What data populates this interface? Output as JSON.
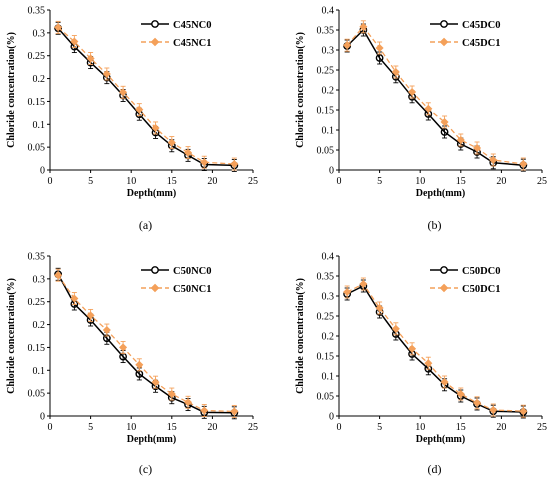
{
  "chart_data": [
    {
      "type": "line",
      "label": "(a)",
      "xlabel": "Depth(mm)",
      "ylabel": "Chloride concentration(%)",
      "xlim": [
        0,
        25
      ],
      "ylim": [
        0,
        0.35
      ],
      "xticks": [
        0,
        5,
        10,
        15,
        20,
        25
      ],
      "yticks": [
        0,
        0.05,
        0.1,
        0.15,
        0.2,
        0.25,
        0.3,
        0.35
      ],
      "ytick_labels": [
        "0",
        "0.05",
        "0.1",
        "0.15",
        "0.2",
        "0.25",
        "0.3",
        "0.35"
      ],
      "grid": false,
      "legend_position": "top-right",
      "x": [
        1,
        3,
        5,
        7,
        9,
        11,
        13,
        15,
        17,
        19,
        22.7
      ],
      "series": [
        {
          "name": "C45NC0",
          "color": "#000000",
          "dashed": false,
          "marker": "circle",
          "values": [
            0.31,
            0.27,
            0.235,
            0.202,
            0.163,
            0.122,
            0.082,
            0.053,
            0.032,
            0.012,
            0.01
          ]
        },
        {
          "name": "C45NC1",
          "color": "#f4a05a",
          "dashed": true,
          "marker": "diamond",
          "values": [
            0.312,
            0.281,
            0.244,
            0.21,
            0.17,
            0.132,
            0.092,
            0.06,
            0.038,
            0.017,
            0.013
          ]
        }
      ]
    },
    {
      "type": "line",
      "label": "(b)",
      "xlabel": "Depth(mm)",
      "ylabel": "Chloride concentration(%)",
      "xlim": [
        0,
        25
      ],
      "ylim": [
        0,
        0.4
      ],
      "xticks": [
        0,
        5,
        10,
        15,
        20,
        25
      ],
      "yticks": [
        0,
        0.05,
        0.1,
        0.15,
        0.2,
        0.25,
        0.3,
        0.35,
        0.4
      ],
      "ytick_labels": [
        "0",
        "0.05",
        "0.1",
        "0.15",
        "0.2",
        "0.25",
        "0.3",
        "0.35",
        "0.4"
      ],
      "grid": false,
      "legend_position": "top-right",
      "x": [
        1,
        3,
        5,
        7,
        9,
        11,
        13,
        15,
        17,
        19,
        22.7
      ],
      "series": [
        {
          "name": "C45DC0",
          "color": "#000000",
          "dashed": false,
          "marker": "circle",
          "values": [
            0.31,
            0.35,
            0.28,
            0.233,
            0.183,
            0.14,
            0.095,
            0.065,
            0.045,
            0.018,
            0.012
          ]
        },
        {
          "name": "C45DC1",
          "color": "#f4a05a",
          "dashed": true,
          "marker": "diamond",
          "values": [
            0.312,
            0.358,
            0.305,
            0.245,
            0.195,
            0.153,
            0.12,
            0.075,
            0.055,
            0.025,
            0.015
          ]
        }
      ]
    },
    {
      "type": "line",
      "label": "(c)",
      "xlabel": "Depth(mm)",
      "ylabel": "Chloride concentration(%)",
      "xlim": [
        0,
        25
      ],
      "ylim": [
        0,
        0.35
      ],
      "xticks": [
        0,
        5,
        10,
        15,
        20,
        25
      ],
      "yticks": [
        0,
        0.05,
        0.1,
        0.15,
        0.2,
        0.25,
        0.3,
        0.35
      ],
      "ytick_labels": [
        "0",
        "0.05",
        "0.1",
        "0.15",
        "0.2",
        "0.25",
        "0.3",
        "0.35"
      ],
      "grid": false,
      "legend_position": "top-right",
      "x": [
        1,
        3,
        5,
        7,
        9,
        11,
        13,
        15,
        17,
        19,
        22.7
      ],
      "series": [
        {
          "name": "C50NC0",
          "color": "#000000",
          "dashed": false,
          "marker": "circle",
          "values": [
            0.31,
            0.245,
            0.21,
            0.17,
            0.13,
            0.092,
            0.065,
            0.04,
            0.025,
            0.008,
            0.007
          ]
        },
        {
          "name": "C50NC1",
          "color": "#f4a05a",
          "dashed": true,
          "marker": "diamond",
          "values": [
            0.308,
            0.257,
            0.22,
            0.188,
            0.15,
            0.112,
            0.074,
            0.048,
            0.03,
            0.012,
            0.01
          ]
        }
      ]
    },
    {
      "type": "line",
      "label": "(d)",
      "xlabel": "Depth(mm)",
      "ylabel": "Chloride concentration(%)",
      "xlim": [
        0,
        25
      ],
      "ylim": [
        0,
        0.4
      ],
      "xticks": [
        0,
        5,
        10,
        15,
        20,
        25
      ],
      "yticks": [
        0,
        0.05,
        0.1,
        0.15,
        0.2,
        0.25,
        0.3,
        0.35,
        0.4
      ],
      "ytick_labels": [
        "0",
        "0.05",
        "0.1",
        "0.15",
        "0.2",
        "0.25",
        "0.3",
        "0.35",
        "0.4"
      ],
      "grid": false,
      "legend_position": "top-right",
      "x": [
        1,
        3,
        5,
        7,
        9,
        11,
        13,
        15,
        17,
        19,
        22.7
      ],
      "series": [
        {
          "name": "C50DC0",
          "color": "#000000",
          "dashed": false,
          "marker": "circle",
          "values": [
            0.305,
            0.325,
            0.26,
            0.205,
            0.155,
            0.118,
            0.078,
            0.05,
            0.03,
            0.012,
            0.01
          ]
        },
        {
          "name": "C50DC1",
          "color": "#f4a05a",
          "dashed": true,
          "marker": "diamond",
          "values": [
            0.31,
            0.33,
            0.27,
            0.218,
            0.168,
            0.132,
            0.085,
            0.055,
            0.033,
            0.015,
            0.012
          ]
        }
      ]
    }
  ]
}
